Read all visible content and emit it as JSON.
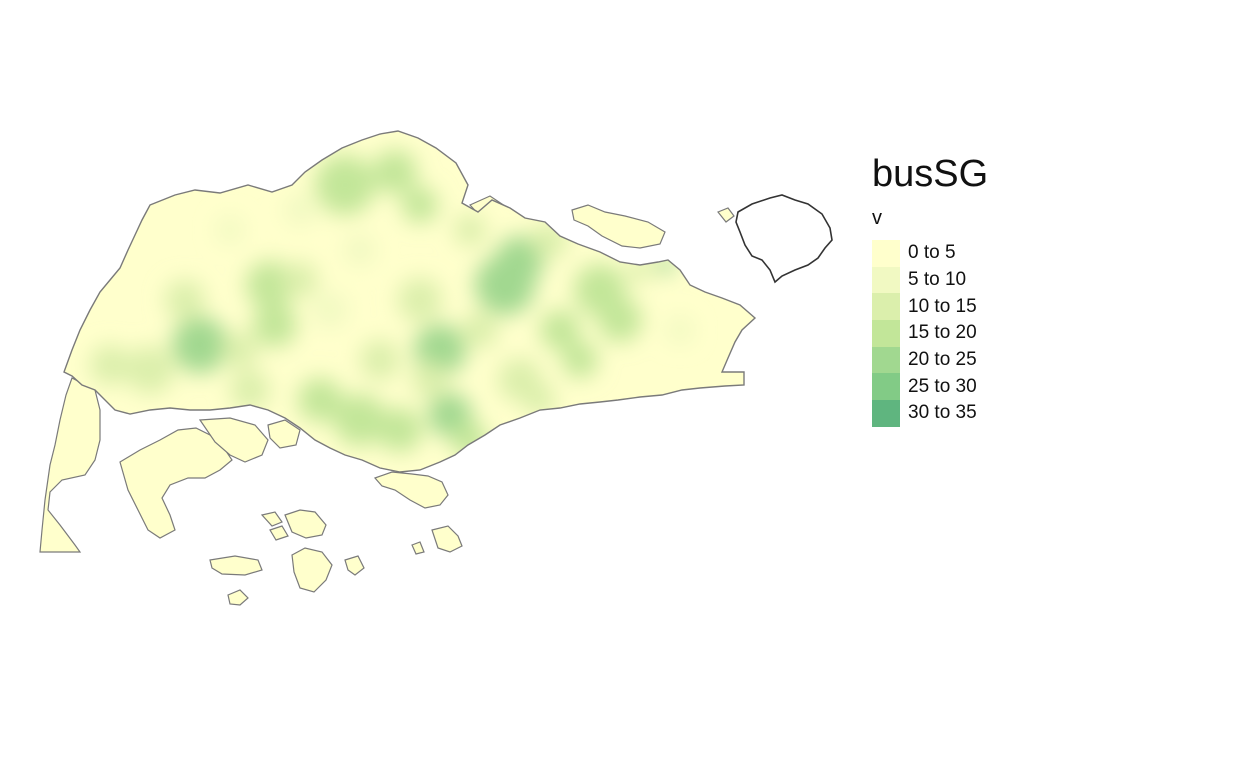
{
  "map": {
    "title": "busSG",
    "subject": "Singapore",
    "variable": "v",
    "outline_color": "#595959",
    "legend": {
      "classes": [
        {
          "label": "0 to 5",
          "color": "#ffffcc",
          "min": 0,
          "max": 5
        },
        {
          "label": "5 to 10",
          "color": "#f1f9c2",
          "min": 5,
          "max": 10
        },
        {
          "label": "10 to 15",
          "color": "#dbefac",
          "min": 10,
          "max": 15
        },
        {
          "label": "15 to 20",
          "color": "#c2e699",
          "min": 15,
          "max": 20
        },
        {
          "label": "20 to 25",
          "color": "#a1d890",
          "min": 20,
          "max": 25
        },
        {
          "label": "25 to 30",
          "color": "#82cb86",
          "min": 25,
          "max": 30
        },
        {
          "label": "30 to 35",
          "color": "#5fb57f",
          "min": 30,
          "max": 35
        }
      ]
    }
  }
}
